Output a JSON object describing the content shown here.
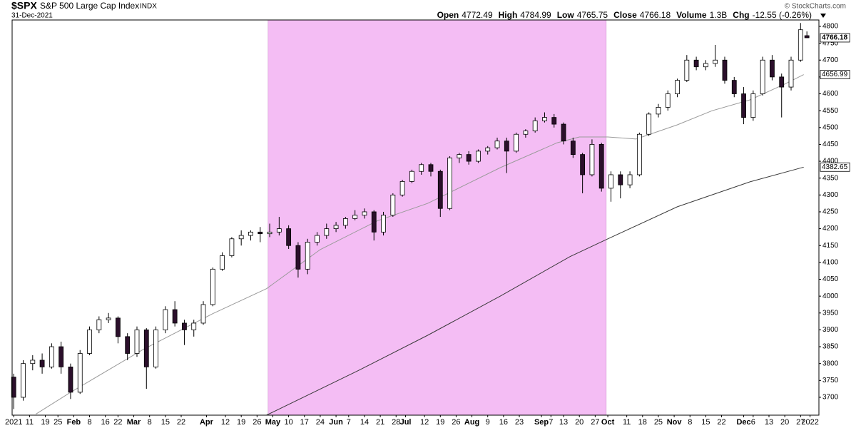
{
  "header": {
    "symbol": "$SPX",
    "name": "S&P 500 Large Cap Index",
    "exchange": "INDX",
    "date": "31-Dec-2021",
    "credit": "© StockCharts.com",
    "quote": [
      {
        "label": "Open",
        "value": 4772.49
      },
      {
        "label": "High",
        "value": 4784.99
      },
      {
        "label": "Low",
        "value": 4765.75
      },
      {
        "label": "Close",
        "value": 4766.18
      },
      {
        "label": "Volume",
        "value": "1.3B"
      },
      {
        "label": "Chg",
        "value": "-12.55 (-0.26%)"
      }
    ]
  },
  "chart_data": {
    "type": "candlestick",
    "xlim": [
      -0.5,
      254.8
    ],
    "ylim": [
      3647,
      4819
    ],
    "yticks": [
      3700,
      3750,
      3800,
      3850,
      3900,
      3950,
      4000,
      4050,
      4100,
      4150,
      4200,
      4250,
      4300,
      4350,
      4400,
      4450,
      4500,
      4550,
      4600,
      4650,
      4700,
      4750,
      4800
    ],
    "xticks": [
      {
        "value": 0,
        "label": "2021"
      },
      {
        "value": 5,
        "label": "11"
      },
      {
        "value": 10,
        "label": "19"
      },
      {
        "value": 14,
        "label": "25"
      },
      {
        "value": 19,
        "label": "Feb"
      },
      {
        "value": 24,
        "label": "8"
      },
      {
        "value": 29,
        "label": "16"
      },
      {
        "value": 33,
        "label": "22"
      },
      {
        "value": 38,
        "label": "Mar"
      },
      {
        "value": 43,
        "label": "8"
      },
      {
        "value": 48,
        "label": "15"
      },
      {
        "value": 53,
        "label": "22"
      },
      {
        "value": 61,
        "label": "Apr"
      },
      {
        "value": 67,
        "label": "12"
      },
      {
        "value": 72,
        "label": "19"
      },
      {
        "value": 77,
        "label": "26"
      },
      {
        "value": 82,
        "label": "May"
      },
      {
        "value": 87,
        "label": "10"
      },
      {
        "value": 92,
        "label": "17"
      },
      {
        "value": 97,
        "label": "24"
      },
      {
        "value": 102,
        "label": "Jun"
      },
      {
        "value": 106,
        "label": "7"
      },
      {
        "value": 111,
        "label": "14"
      },
      {
        "value": 116,
        "label": "21"
      },
      {
        "value": 121,
        "label": "28"
      },
      {
        "value": 124,
        "label": "Jul"
      },
      {
        "value": 130,
        "label": "12"
      },
      {
        "value": 135,
        "label": "19"
      },
      {
        "value": 140,
        "label": "26"
      },
      {
        "value": 145,
        "label": "Aug"
      },
      {
        "value": 150,
        "label": "9"
      },
      {
        "value": 155,
        "label": "16"
      },
      {
        "value": 160,
        "label": "23"
      },
      {
        "value": 167,
        "label": "Sep"
      },
      {
        "value": 170,
        "label": "7"
      },
      {
        "value": 174,
        "label": "13"
      },
      {
        "value": 179,
        "label": "20"
      },
      {
        "value": 184,
        "label": "27"
      },
      {
        "value": 188,
        "label": "Oct"
      },
      {
        "value": 194,
        "label": "11"
      },
      {
        "value": 199,
        "label": "18"
      },
      {
        "value": 204,
        "label": "25"
      },
      {
        "value": 209,
        "label": "Nov"
      },
      {
        "value": 214,
        "label": "8"
      },
      {
        "value": 219,
        "label": "15"
      },
      {
        "value": 224,
        "label": "22"
      },
      {
        "value": 231,
        "label": "Dec"
      },
      {
        "value": 234,
        "label": "6"
      },
      {
        "value": 239,
        "label": "13"
      },
      {
        "value": 244,
        "label": "20"
      },
      {
        "value": 249,
        "label": "27"
      },
      {
        "value": 252,
        "label": "2022"
      }
    ],
    "highlight": {
      "from": 80.5,
      "to": 187.5,
      "color": "#f4bdf4"
    },
    "up_color": "#ffffff",
    "down_color": "#2b0f2b",
    "candle_stroke": "#000000",
    "last_price": 4766.18,
    "x": [
      0,
      3,
      6,
      9,
      12,
      15,
      18,
      21,
      24,
      27,
      30,
      33,
      36,
      39,
      42,
      45,
      48,
      51,
      54,
      57,
      60,
      63,
      66,
      69,
      72,
      75,
      78,
      81,
      84,
      87,
      90,
      93,
      96,
      99,
      102,
      105,
      108,
      111,
      114,
      117,
      120,
      123,
      126,
      129,
      132,
      135,
      138,
      141,
      144,
      147,
      150,
      153,
      156,
      159,
      162,
      165,
      168,
      171,
      174,
      177,
      180,
      183,
      186,
      189,
      192,
      195,
      198,
      201,
      204,
      207,
      210,
      213,
      216,
      219,
      222,
      225,
      228,
      231,
      234,
      237,
      240,
      243,
      246,
      249,
      251
    ],
    "open": [
      3760,
      3700,
      3800,
      3810,
      3790,
      3850,
      3790,
      3715,
      3830,
      3900,
      3930,
      3935,
      3880,
      3830,
      3900,
      3790,
      3900,
      3960,
      3920,
      3900,
      3920,
      3975,
      4080,
      4120,
      4170,
      4180,
      4190,
      4185,
      4190,
      4200,
      4150,
      4080,
      4160,
      4180,
      4200,
      4210,
      4230,
      4240,
      4250,
      4190,
      4240,
      4300,
      4340,
      4370,
      4390,
      4370,
      4260,
      4410,
      4420,
      4400,
      4430,
      4440,
      4460,
      4430,
      4480,
      4490,
      4520,
      4530,
      4510,
      4460,
      4420,
      4360,
      4450,
      4320,
      4360,
      4330,
      4360,
      4480,
      4540,
      4560,
      4600,
      4640,
      4700,
      4680,
      4690,
      4700,
      4640,
      4600,
      4530,
      4600,
      4700,
      4650,
      4620,
      4700,
      4772.49
    ],
    "high": [
      3770,
      3810,
      3825,
      3830,
      3860,
      3865,
      3800,
      3840,
      3910,
      3940,
      3950,
      3940,
      3890,
      3910,
      3905,
      3910,
      3970,
      3985,
      3930,
      3930,
      3985,
      4085,
      4130,
      4175,
      4195,
      4195,
      4205,
      4215,
      4235,
      4210,
      4160,
      4170,
      4190,
      4215,
      4220,
      4235,
      4255,
      4260,
      4255,
      4250,
      4305,
      4345,
      4375,
      4395,
      4395,
      4375,
      4415,
      4425,
      4430,
      4435,
      4445,
      4470,
      4470,
      4485,
      4495,
      4530,
      4545,
      4540,
      4515,
      4470,
      4425,
      4465,
      4455,
      4370,
      4370,
      4370,
      4485,
      4545,
      4570,
      4610,
      4645,
      4715,
      4710,
      4700,
      4745,
      4710,
      4650,
      4620,
      4610,
      4710,
      4715,
      4660,
      4710,
      4810,
      4784.99
    ],
    "low": [
      3665,
      3690,
      3780,
      3770,
      3785,
      3770,
      3695,
      3710,
      3825,
      3890,
      3920,
      3860,
      3810,
      3820,
      3725,
      3785,
      3890,
      3910,
      3855,
      3880,
      3915,
      3970,
      4075,
      4115,
      4150,
      4165,
      4160,
      4175,
      4180,
      4140,
      4055,
      4065,
      4150,
      4170,
      4190,
      4200,
      4225,
      4230,
      4165,
      4180,
      4235,
      4295,
      4335,
      4360,
      4355,
      4235,
      4255,
      4395,
      4390,
      4395,
      4420,
      4435,
      4365,
      4425,
      4470,
      4485,
      4515,
      4500,
      4450,
      4410,
      4305,
      4355,
      4310,
      4280,
      4290,
      4320,
      4355,
      4475,
      4530,
      4550,
      4590,
      4635,
      4670,
      4670,
      4680,
      4630,
      4590,
      4510,
      4520,
      4595,
      4640,
      4530,
      4610,
      4695,
      4765.75
    ],
    "close": [
      3700,
      3800,
      3810,
      3790,
      3850,
      3790,
      3715,
      3830,
      3900,
      3930,
      3935,
      3880,
      3830,
      3900,
      3790,
      3900,
      3960,
      3920,
      3900,
      3920,
      3975,
      4080,
      4120,
      4170,
      4180,
      4190,
      4185,
      4190,
      4200,
      4150,
      4080,
      4160,
      4180,
      4200,
      4210,
      4230,
      4240,
      4250,
      4190,
      4240,
      4300,
      4340,
      4370,
      4390,
      4370,
      4260,
      4410,
      4420,
      4400,
      4430,
      4440,
      4460,
      4430,
      4480,
      4490,
      4520,
      4530,
      4510,
      4460,
      4420,
      4360,
      4450,
      4320,
      4360,
      4330,
      4360,
      4480,
      4540,
      4560,
      4600,
      4640,
      4700,
      4680,
      4690,
      4700,
      4640,
      4600,
      4530,
      4600,
      4700,
      4650,
      4620,
      4700,
      4790,
      4766.18
    ],
    "series": [
      {
        "color": "#9a9a9a",
        "x": [
          7,
          18,
          41,
          63,
          80,
          97,
          115,
          131,
          154,
          172,
          179,
          188,
          197,
          210,
          221,
          233,
          244,
          250
        ],
        "values": [
          3650,
          3715,
          3842,
          3948,
          4022,
          4138,
          4223,
          4275,
          4381,
          4455,
          4472,
          4472,
          4466,
          4508,
          4550,
          4582,
          4629,
          4656.99
        ],
        "last_value": 4656.99
      },
      {
        "color": "#3a3a3a",
        "x": [
          80,
          109,
          131,
          154,
          176,
          188,
          210,
          233,
          250
        ],
        "values": [
          3647,
          3779,
          3884,
          4000,
          4117,
          4170,
          4265,
          4339,
          4382.65
        ],
        "last_value": 4382.65
      }
    ]
  }
}
